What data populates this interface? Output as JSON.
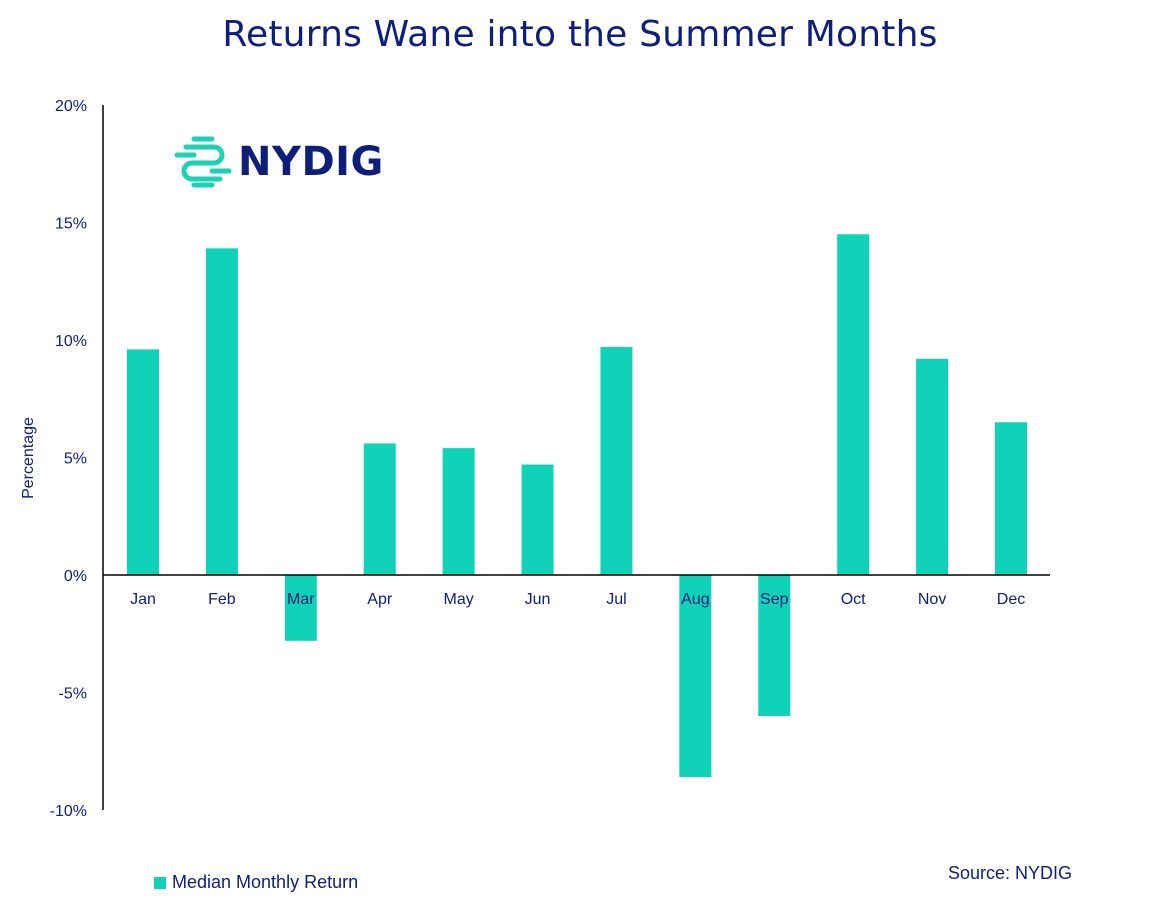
{
  "title": "Returns Wane into the Summer Months",
  "logo": {
    "text": "NYDIG",
    "icon": "nydig-logo-icon",
    "icon_color": "#1ed1b4"
  },
  "source": "Source: NYDIG",
  "colors": {
    "bar": "#10d2b8",
    "text": "#0d1f7a",
    "axis": "#000000"
  },
  "chart_data": {
    "type": "bar",
    "title": "Returns Wane into the Summer Months",
    "ylabel": "Percentage",
    "xlabel": "",
    "categories": [
      "Jan",
      "Feb",
      "Mar",
      "Apr",
      "May",
      "Jun",
      "Jul",
      "Aug",
      "Sep",
      "Oct",
      "Nov",
      "Dec"
    ],
    "series": [
      {
        "name": "Median Monthly Return",
        "values": [
          9.6,
          13.9,
          -2.8,
          5.6,
          5.4,
          4.7,
          9.7,
          -8.6,
          -6.0,
          14.5,
          9.2,
          6.5
        ]
      }
    ],
    "ylim": [
      -10,
      20
    ],
    "yticks": [
      20,
      15,
      10,
      5,
      0,
      -5,
      -10
    ],
    "ytick_labels": [
      "20%",
      "15%",
      "10%",
      "5%",
      "0%",
      "-5%",
      "-10%"
    ],
    "grid": false,
    "legend_position": "bottom-left"
  }
}
